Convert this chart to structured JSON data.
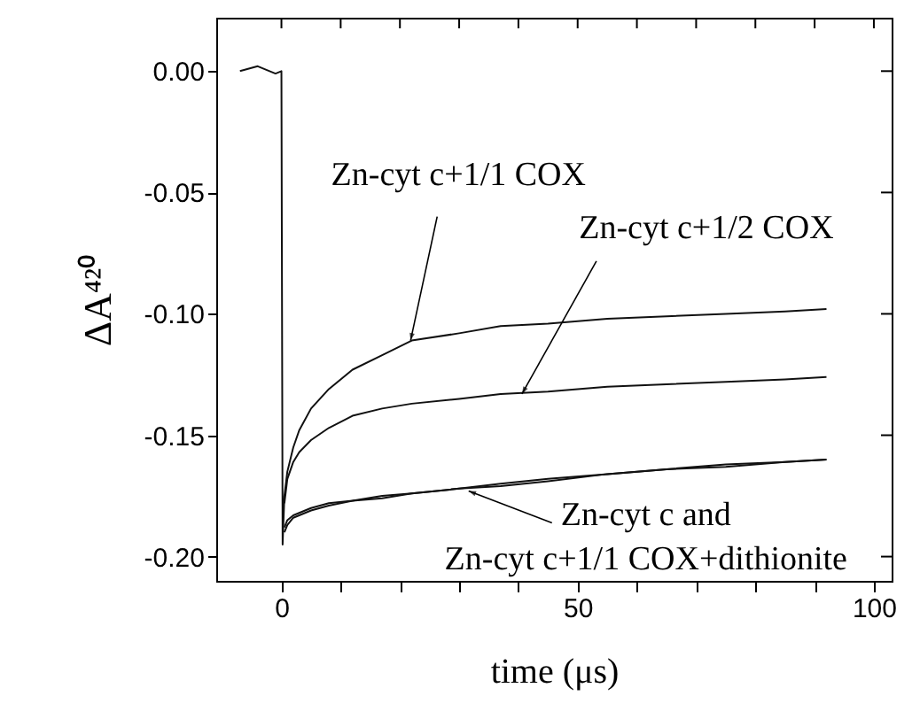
{
  "chart_data": {
    "type": "line",
    "xlabel": "time (μs)",
    "ylabel": "ΔA⁴²⁰",
    "xlim": [
      -11,
      103
    ],
    "ylim": [
      -0.21,
      0.022
    ],
    "xticks": [
      0,
      {
        "value": 10,
        "label": null
      },
      {
        "value": 20,
        "label": null
      },
      {
        "value": 30,
        "label": null
      },
      {
        "value": 40,
        "label": null
      },
      50,
      {
        "value": 60,
        "label": null
      },
      {
        "value": 70,
        "label": null
      },
      {
        "value": 80,
        "label": null
      },
      {
        "value": 90,
        "label": null
      },
      100
    ],
    "yticks": [
      {
        "value": 0,
        "label": "0.00"
      },
      {
        "value": -0.05,
        "label": "-0.05"
      },
      {
        "value": -0.1,
        "label": "-0.10"
      },
      {
        "value": -0.15,
        "label": "-0.15"
      },
      {
        "value": -0.2,
        "label": "-0.20"
      }
    ],
    "grid": false,
    "legend": false,
    "marker": "none",
    "line_style": "solid",
    "series": [
      {
        "color": "#111111",
        "x": [
          -7,
          -4,
          -1,
          0,
          0.2,
          0.5,
          1,
          2,
          3,
          5,
          8,
          12,
          17,
          22,
          30,
          37,
          45,
          55,
          65,
          75,
          85,
          92
        ],
        "values": [
          0,
          0.002,
          -0.001,
          0,
          -0.195,
          -0.175,
          -0.165,
          -0.155,
          -0.148,
          -0.139,
          -0.131,
          -0.123,
          -0.117,
          -0.111,
          -0.108,
          -0.105,
          -0.104,
          -0.102,
          -0.101,
          -0.1,
          -0.099,
          -0.098
        ]
      },
      {
        "color": "#111111",
        "x": [
          0.5,
          1,
          2,
          3,
          5,
          8,
          12,
          17,
          22,
          30,
          37,
          45,
          55,
          65,
          75,
          85,
          92
        ],
        "values": [
          -0.178,
          -0.168,
          -0.161,
          -0.157,
          -0.152,
          -0.147,
          -0.142,
          -0.139,
          -0.137,
          -0.135,
          -0.133,
          -0.132,
          -0.13,
          -0.129,
          -0.128,
          -0.127,
          -0.126
        ]
      },
      {
        "color": "#111111",
        "x": [
          0.5,
          1,
          2,
          3,
          5,
          8,
          12,
          17,
          22,
          30,
          37,
          45,
          55,
          65,
          75,
          85,
          92
        ],
        "values": [
          -0.188,
          -0.185,
          -0.183,
          -0.182,
          -0.18,
          -0.178,
          -0.177,
          -0.175,
          -0.174,
          -0.172,
          -0.17,
          -0.168,
          -0.166,
          -0.164,
          -0.162,
          -0.161,
          -0.16
        ]
      },
      {
        "color": "#111111",
        "x": [
          0.5,
          1,
          2,
          3,
          5,
          8,
          12,
          17,
          22,
          30,
          37,
          45,
          55,
          65,
          75,
          85,
          92
        ],
        "values": [
          -0.19,
          -0.187,
          -0.184,
          -0.183,
          -0.181,
          -0.179,
          -0.177,
          -0.176,
          -0.174,
          -0.172,
          -0.171,
          -0.169,
          -0.166,
          -0.164,
          -0.163,
          -0.161,
          -0.16
        ]
      }
    ],
    "annotations": [
      {
        "text": "Zn-cyt c+1/1 COX",
        "x": 21.8,
        "y": -0.111
      },
      {
        "text": "Zn-cyt c+1/2 COX",
        "x": 40.6,
        "y": -0.133
      },
      {
        "text": "Zn-cyt c  and\nZn-cyt c+1/1 COX+dithionite",
        "x": 31.6,
        "y": -0.173
      }
    ]
  }
}
